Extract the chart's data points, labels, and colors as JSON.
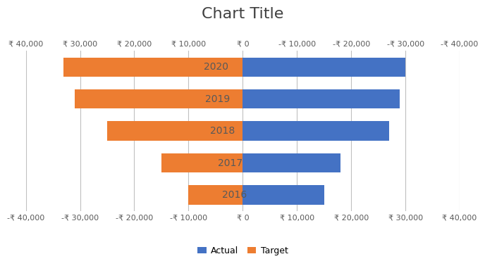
{
  "title": "Chart Title",
  "years": [
    "2020",
    "2019",
    "2018",
    "2017",
    "2016"
  ],
  "actual": [
    30000,
    29000,
    27000,
    18000,
    15000
  ],
  "target": [
    33000,
    31000,
    25000,
    15000,
    10000
  ],
  "actual_color": "#4472C4",
  "target_color": "#ED7D31",
  "xlim_left": -40000,
  "xlim_right": 40000,
  "top_tick_positions": [
    -40000,
    -30000,
    -20000,
    -10000,
    0,
    10000,
    20000,
    30000,
    40000
  ],
  "top_tick_labels": [
    "₹ 40,000",
    "₹ 30,000",
    "₹ 20,000",
    "₹ 10,000",
    "₹ 0",
    "-₹ 10,000",
    "-₹ 20,000",
    "-₹ 30,000",
    "-₹ 40,000"
  ],
  "bottom_tick_positions": [
    -40000,
    -30000,
    -20000,
    -10000,
    0,
    10000,
    20000,
    30000,
    40000
  ],
  "bottom_tick_labels": [
    "-₹ 40,000",
    "-₹ 30,000",
    "-₹ 20,000",
    "-₹ 10,000",
    "₹ 0",
    "₹ 10,000",
    "₹ 20,000",
    "₹ 30,000",
    "₹ 40,000"
  ],
  "background_color": "#FFFFFF",
  "plot_bg_color": "#FFFFFF",
  "grid_color": "#C0C0C0",
  "title_fontsize": 16,
  "label_fontsize": 8,
  "bar_label_fontsize": 10,
  "legend_fontsize": 9,
  "font_color": "#595959",
  "bar_height": 0.6
}
